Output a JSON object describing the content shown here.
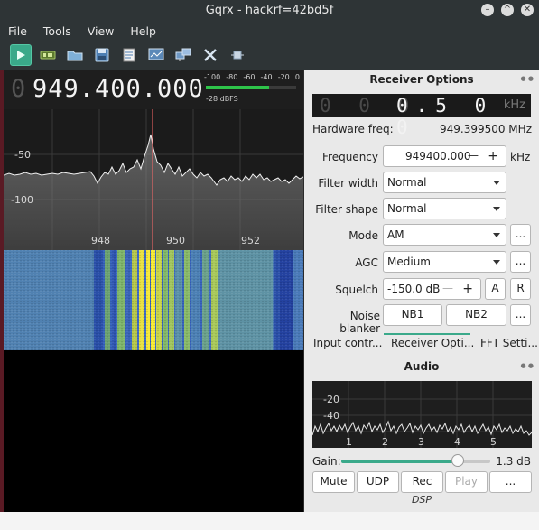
{
  "window": {
    "title": "Gqrx - hackrf=42bd5f"
  },
  "menu": [
    "File",
    "Tools",
    "View",
    "Help"
  ],
  "toolbar": {
    "icons": [
      "play-icon",
      "hardware-icon",
      "open-folder-icon",
      "save-icon",
      "notes-icon",
      "screenshot-icon",
      "network-icon",
      "tools-icon",
      "plugin-icon"
    ]
  },
  "freq_display": {
    "leading_dim": "0",
    "value": "949.400.000"
  },
  "smeter": {
    "ticks": [
      "-100",
      "-80",
      "-60",
      "-40",
      "-20",
      "0"
    ],
    "dbfs": "-28 dBFS",
    "level_fraction": 0.7
  },
  "spectrum": {
    "y_ticks": [
      "-50",
      "-100"
    ],
    "x_ticks": [
      "948",
      "950",
      "952"
    ]
  },
  "receiver": {
    "title": "Receiver Options",
    "offset": {
      "dim": "0 0 0",
      "value": "0.5 0 0",
      "unit": "kHz"
    },
    "hw_label": "Hardware freq:",
    "hw_value": "949.399500 MHz",
    "frequency_label": "Frequency",
    "frequency_value": "949400.000",
    "frequency_unit": "kHz",
    "filter_width_label": "Filter width",
    "filter_width_value": "Normal",
    "filter_shape_label": "Filter shape",
    "filter_shape_value": "Normal",
    "mode_label": "Mode",
    "mode_value": "AM",
    "agc_label": "AGC",
    "agc_value": "Medium",
    "squelch_label": "Squelch",
    "squelch_value": "-150.0 dB",
    "squelch_a": "A",
    "squelch_r": "R",
    "nb_label": "Noise blanker",
    "nb1": "NB1",
    "nb2": "NB2",
    "more": "...",
    "minus": "—",
    "plus": "+"
  },
  "tabs": [
    "Input contr...",
    "Receiver Opti...",
    "FFT Setti..."
  ],
  "audio": {
    "title": "Audio",
    "y_ticks": [
      "-20",
      "-40"
    ],
    "x_ticks": [
      "1",
      "2",
      "3",
      "4",
      "5"
    ],
    "gain_label": "Gain:",
    "gain_value": "1.3 dB",
    "gain_fraction": 0.78,
    "buttons": [
      "Mute",
      "UDP",
      "Rec",
      "Play",
      "..."
    ],
    "dsp_label": "DSP"
  },
  "colors": {
    "accent": "#3aa98a",
    "smeter": "#2ec44a",
    "marker": "#ff6a6a"
  }
}
